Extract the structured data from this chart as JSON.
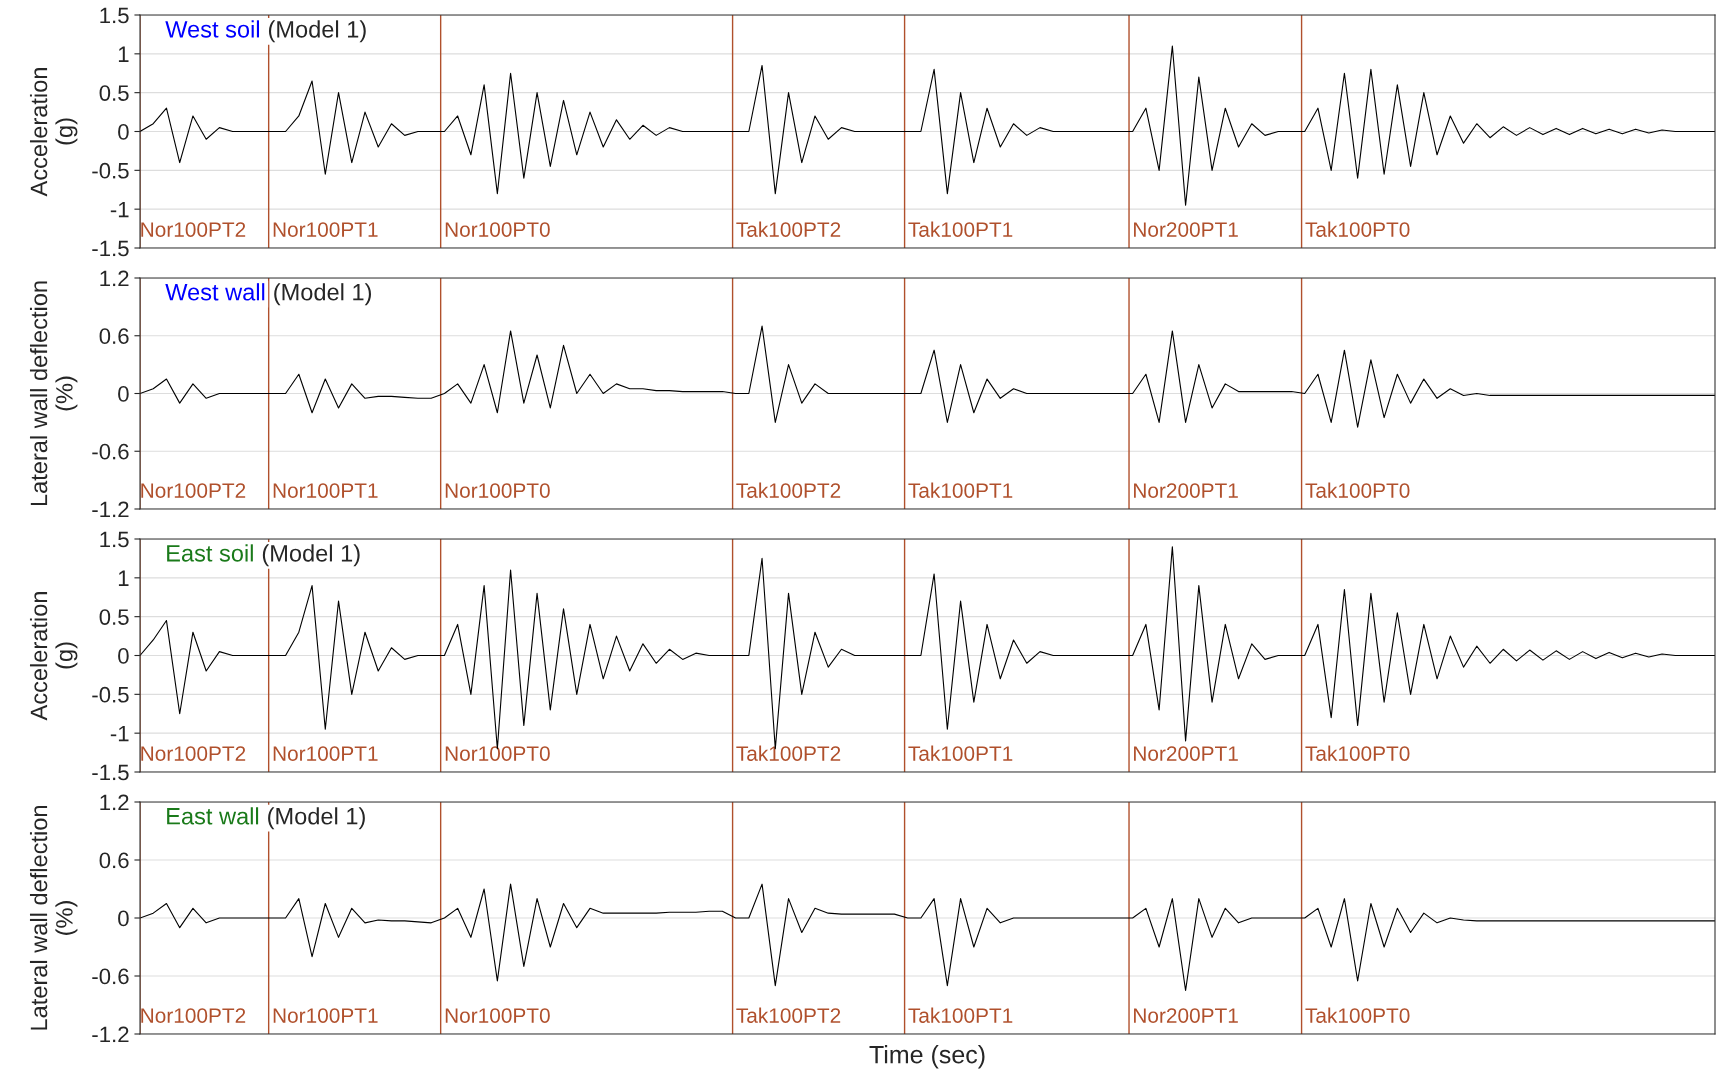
{
  "chart_data": [
    {
      "type": "line",
      "title": "West soil",
      "annotations": [
        "(Model 1)"
      ],
      "ylabel": "Acceleration\n(g)",
      "grid": "y",
      "ylim": [
        -1.5,
        1.5
      ],
      "yticks": [
        -1.5,
        -1,
        -0.5,
        0,
        0.5,
        1,
        1.5
      ],
      "categories": [
        null,
        null,
        null,
        null,
        "Nor100PT2",
        null,
        null,
        null,
        null,
        null,
        null,
        null,
        null,
        null,
        "Nor100PT1",
        null,
        null,
        null,
        null,
        null,
        null,
        null,
        null,
        null,
        null,
        null,
        null,
        "Nor100PT0",
        null,
        null,
        null,
        null,
        null,
        null,
        null,
        null,
        null,
        null,
        null,
        null,
        null,
        null,
        null,
        null,
        null,
        null,
        null,
        null,
        null,
        "Tak100PT2",
        null,
        null,
        null,
        null,
        null,
        null,
        null,
        null,
        null,
        null,
        null,
        null,
        "Tak100PT1",
        null,
        null,
        null,
        null,
        null,
        null,
        null,
        null,
        null,
        null,
        null,
        null,
        null,
        null,
        null,
        null,
        "Nor200PT1",
        null,
        null,
        null,
        null,
        null,
        null,
        null,
        null,
        null,
        null,
        null,
        null,
        "Tak100PT0",
        null,
        null,
        null,
        null,
        null,
        null,
        null,
        null,
        null,
        null,
        null,
        null,
        null,
        null,
        null,
        null,
        null,
        null,
        null,
        null,
        null,
        null,
        null,
        null,
        null,
        null,
        null
      ],
      "series": [
        {
          "color": "#000000",
          "values": [
            0,
            0.1,
            0.3,
            -0.4,
            0.2,
            -0.1,
            0.05,
            0,
            0,
            0,
            0,
            0,
            0.2,
            0.65,
            -0.55,
            0.5,
            -0.4,
            0.25,
            -0.2,
            0.1,
            -0.05,
            0,
            0,
            0,
            0.2,
            -0.3,
            0.6,
            -0.8,
            0.75,
            -0.6,
            0.5,
            -0.45,
            0.4,
            -0.3,
            0.25,
            -0.2,
            0.15,
            -0.1,
            0.08,
            -0.05,
            0.05,
            0,
            0,
            0,
            0,
            0,
            0,
            0.85,
            -0.8,
            0.5,
            -0.4,
            0.2,
            -0.1,
            0.05,
            0,
            0,
            0,
            0,
            0,
            0,
            0.8,
            -0.8,
            0.5,
            -0.4,
            0.3,
            -0.2,
            0.1,
            -0.05,
            0.05,
            0,
            0,
            0,
            0,
            0,
            0,
            0,
            0.3,
            -0.5,
            1.1,
            -0.95,
            0.7,
            -0.5,
            0.3,
            -0.2,
            0.1,
            -0.05,
            0,
            0,
            0,
            0.3,
            -0.5,
            0.75,
            -0.6,
            0.8,
            -0.55,
            0.6,
            -0.45,
            0.5,
            -0.3,
            0.2,
            -0.15,
            0.1,
            -0.08,
            0.06,
            -0.05,
            0.05,
            -0.04,
            0.04,
            -0.04,
            0.04,
            -0.03,
            0.03,
            -0.03,
            0.03,
            -0.02,
            0.02,
            0,
            0,
            0,
            0
          ]
        }
      ]
    },
    {
      "type": "line",
      "title": "West wall",
      "annotations": [
        "(Model 1)"
      ],
      "ylabel": "Lateral wall deflection\n(%)",
      "grid": "y",
      "ylim": [
        -1.2,
        1.2
      ],
      "yticks": [
        -1.2,
        -0.6,
        0,
        0.6,
        1.2
      ],
      "categories": [
        null,
        null,
        null,
        null,
        "Nor100PT2",
        null,
        null,
        null,
        null,
        null,
        null,
        null,
        null,
        null,
        "Nor100PT1",
        null,
        null,
        null,
        null,
        null,
        null,
        null,
        null,
        null,
        null,
        null,
        null,
        "Nor100PT0",
        null,
        null,
        null,
        null,
        null,
        null,
        null,
        null,
        null,
        null,
        null,
        null,
        null,
        null,
        null,
        null,
        null,
        null,
        null,
        null,
        null,
        "Tak100PT2",
        null,
        null,
        null,
        null,
        null,
        null,
        null,
        null,
        null,
        null,
        null,
        null,
        "Tak100PT1",
        null,
        null,
        null,
        null,
        null,
        null,
        null,
        null,
        null,
        null,
        null,
        null,
        null,
        null,
        null,
        null,
        "Nor200PT1",
        null,
        null,
        null,
        null,
        null,
        null,
        null,
        null,
        null,
        null,
        null,
        null,
        "Tak100PT0",
        null,
        null,
        null,
        null,
        null,
        null,
        null,
        null,
        null,
        null,
        null,
        null,
        null,
        null,
        null,
        null,
        null,
        null,
        null,
        null,
        null,
        null,
        null,
        null,
        null,
        null,
        null
      ],
      "series": [
        {
          "color": "#000000",
          "values": [
            0,
            0.05,
            0.15,
            -0.1,
            0.1,
            -0.05,
            0,
            0,
            0,
            0,
            0,
            0,
            0.2,
            -0.2,
            0.15,
            -0.15,
            0.1,
            -0.05,
            -0.03,
            -0.03,
            -0.04,
            -0.05,
            -0.05,
            0,
            0.1,
            -0.1,
            0.3,
            -0.2,
            0.65,
            -0.1,
            0.4,
            -0.15,
            0.5,
            0,
            0.2,
            0,
            0.1,
            0.05,
            0.05,
            0.03,
            0.03,
            0.02,
            0.02,
            0.02,
            0.02,
            0,
            0,
            0.7,
            -0.3,
            0.3,
            -0.1,
            0.1,
            0,
            0,
            0,
            0,
            0,
            0,
            0,
            0,
            0.45,
            -0.3,
            0.3,
            -0.2,
            0.15,
            -0.05,
            0.05,
            0,
            0,
            0,
            0,
            0,
            0,
            0,
            0,
            0,
            0.2,
            -0.3,
            0.65,
            -0.3,
            0.3,
            -0.15,
            0.1,
            0.02,
            0.02,
            0.02,
            0.02,
            0.02,
            0,
            0.2,
            -0.3,
            0.45,
            -0.35,
            0.35,
            -0.25,
            0.2,
            -0.1,
            0.15,
            -0.05,
            0.05,
            -0.02,
            0,
            -0.02,
            -0.02,
            -0.02,
            -0.02,
            -0.02,
            -0.02,
            -0.02,
            -0.02,
            -0.02,
            -0.02,
            -0.02,
            -0.02,
            -0.02,
            -0.02,
            -0.02,
            -0.02,
            -0.02,
            -0.02
          ]
        }
      ]
    },
    {
      "type": "line",
      "title": "East soil",
      "annotations": [
        "(Model 1)"
      ],
      "ylabel": "Acceleration\n(g)",
      "grid": "y",
      "ylim": [
        -1.5,
        1.5
      ],
      "yticks": [
        -1.5,
        -1,
        -0.5,
        0,
        0.5,
        1,
        1.5
      ],
      "categories": [
        null,
        null,
        null,
        null,
        "Nor100PT2",
        null,
        null,
        null,
        null,
        null,
        null,
        null,
        null,
        null,
        "Nor100PT1",
        null,
        null,
        null,
        null,
        null,
        null,
        null,
        null,
        null,
        null,
        null,
        null,
        "Nor100PT0",
        null,
        null,
        null,
        null,
        null,
        null,
        null,
        null,
        null,
        null,
        null,
        null,
        null,
        null,
        null,
        null,
        null,
        null,
        null,
        null,
        null,
        "Tak100PT2",
        null,
        null,
        null,
        null,
        null,
        null,
        null,
        null,
        null,
        null,
        null,
        null,
        "Tak100PT1",
        null,
        null,
        null,
        null,
        null,
        null,
        null,
        null,
        null,
        null,
        null,
        null,
        null,
        null,
        null,
        null,
        "Nor200PT1",
        null,
        null,
        null,
        null,
        null,
        null,
        null,
        null,
        null,
        null,
        null,
        null,
        "Tak100PT0",
        null,
        null,
        null,
        null,
        null,
        null,
        null,
        null,
        null,
        null,
        null,
        null,
        null,
        null,
        null,
        null,
        null,
        null,
        null,
        null,
        null,
        null,
        null,
        null,
        null,
        null,
        null
      ],
      "series": [
        {
          "color": "#000000",
          "values": [
            0,
            0.2,
            0.45,
            -0.75,
            0.3,
            -0.2,
            0.05,
            0,
            0,
            0,
            0,
            0,
            0.3,
            0.9,
            -0.95,
            0.7,
            -0.5,
            0.3,
            -0.2,
            0.1,
            -0.05,
            0,
            0,
            0,
            0.4,
            -0.5,
            0.9,
            -1.2,
            1.1,
            -0.9,
            0.8,
            -0.7,
            0.6,
            -0.5,
            0.4,
            -0.3,
            0.25,
            -0.2,
            0.15,
            -0.1,
            0.08,
            -0.05,
            0.03,
            0,
            0,
            0,
            0,
            1.25,
            -1.2,
            0.8,
            -0.5,
            0.3,
            -0.15,
            0.08,
            0,
            0,
            0,
            0,
            0,
            0,
            1.05,
            -0.95,
            0.7,
            -0.6,
            0.4,
            -0.3,
            0.2,
            -0.1,
            0.05,
            0,
            0,
            0,
            0,
            0,
            0,
            0,
            0.4,
            -0.7,
            1.4,
            -1.1,
            0.9,
            -0.6,
            0.4,
            -0.3,
            0.15,
            -0.05,
            0,
            0,
            0,
            0.4,
            -0.8,
            0.85,
            -0.9,
            0.8,
            -0.6,
            0.55,
            -0.5,
            0.4,
            -0.3,
            0.25,
            -0.15,
            0.12,
            -0.1,
            0.08,
            -0.07,
            0.07,
            -0.06,
            0.06,
            -0.05,
            0.05,
            -0.04,
            0.04,
            -0.03,
            0.03,
            -0.02,
            0.02,
            0,
            0,
            0,
            0
          ]
        }
      ]
    },
    {
      "type": "line",
      "title": "East wall",
      "annotations": [
        "(Model 1)"
      ],
      "ylabel": "Lateral wall deflection\n(%)",
      "xlabel": "Time (sec)",
      "grid": "y",
      "ylim": [
        -1.2,
        1.2
      ],
      "yticks": [
        -1.2,
        -0.6,
        0,
        0.6,
        1.2
      ],
      "categories": [
        null,
        null,
        null,
        null,
        "Nor100PT2",
        null,
        null,
        null,
        null,
        null,
        null,
        null,
        null,
        null,
        "Nor100PT1",
        null,
        null,
        null,
        null,
        null,
        null,
        null,
        null,
        null,
        null,
        null,
        null,
        "Nor100PT0",
        null,
        null,
        null,
        null,
        null,
        null,
        null,
        null,
        null,
        null,
        null,
        null,
        null,
        null,
        null,
        null,
        null,
        null,
        null,
        null,
        null,
        "Tak100PT2",
        null,
        null,
        null,
        null,
        null,
        null,
        null,
        null,
        null,
        null,
        null,
        null,
        "Tak100PT1",
        null,
        null,
        null,
        null,
        null,
        null,
        null,
        null,
        null,
        null,
        null,
        null,
        null,
        null,
        null,
        null,
        "Nor200PT1",
        null,
        null,
        null,
        null,
        null,
        null,
        null,
        null,
        null,
        null,
        null,
        null,
        "Tak100PT0",
        null,
        null,
        null,
        null,
        null,
        null,
        null,
        null,
        null,
        null,
        null,
        null,
        null,
        null,
        null,
        null,
        null,
        null,
        null,
        null,
        null,
        null,
        null,
        null,
        null,
        null,
        null
      ],
      "series": [
        {
          "color": "#000000",
          "values": [
            0,
            0.05,
            0.15,
            -0.1,
            0.1,
            -0.05,
            0,
            0,
            0,
            0,
            0,
            0,
            0.2,
            -0.4,
            0.15,
            -0.2,
            0.1,
            -0.05,
            -0.02,
            -0.03,
            -0.03,
            -0.04,
            -0.05,
            0,
            0.1,
            -0.2,
            0.3,
            -0.65,
            0.35,
            -0.5,
            0.2,
            -0.3,
            0.15,
            -0.1,
            0.1,
            0.05,
            0.05,
            0.05,
            0.05,
            0.05,
            0.06,
            0.06,
            0.06,
            0.07,
            0.07,
            0,
            0,
            0.35,
            -0.7,
            0.2,
            -0.15,
            0.1,
            0.05,
            0.04,
            0.04,
            0.04,
            0.04,
            0.04,
            0,
            0,
            0.2,
            -0.7,
            0.2,
            -0.3,
            0.1,
            -0.05,
            0,
            0,
            0,
            0,
            0,
            0,
            0,
            0,
            0,
            0,
            0.1,
            -0.3,
            0.2,
            -0.75,
            0.2,
            -0.2,
            0.1,
            -0.05,
            0,
            0,
            0,
            0,
            0,
            0.1,
            -0.3,
            0.2,
            -0.65,
            0.15,
            -0.3,
            0.1,
            -0.15,
            0.05,
            -0.05,
            0,
            -0.02,
            -0.03,
            -0.03,
            -0.03,
            -0.03,
            -0.03,
            -0.03,
            -0.03,
            -0.03,
            -0.03,
            -0.03,
            -0.03,
            -0.03,
            -0.03,
            -0.03,
            -0.03,
            -0.03,
            -0.03,
            -0.03,
            -0.03
          ]
        }
      ]
    }
  ]
}
